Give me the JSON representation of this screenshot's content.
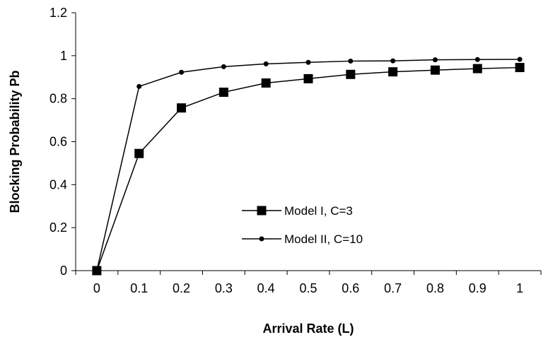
{
  "chart_data": {
    "type": "line",
    "title": "",
    "xlabel": "Arrival Rate (L)",
    "ylabel": "Blocking Probability Pb",
    "categories": [
      "0",
      "0.1",
      "0.2",
      "0.3",
      "0.4",
      "0.5",
      "0.6",
      "0.7",
      "0.8",
      "0.9",
      "1"
    ],
    "x": [
      0,
      0.1,
      0.2,
      0.3,
      0.4,
      0.5,
      0.6,
      0.7,
      0.8,
      0.9,
      1
    ],
    "ylim": [
      0,
      1.2
    ],
    "yticks": [
      "0",
      "0.2",
      "0.4",
      "0.6",
      "0.8",
      "1",
      "1.2"
    ],
    "grid": false,
    "legend_position": "center",
    "series": [
      {
        "name": "Model I, C=3",
        "marker": "square",
        "color": "#000000",
        "values": [
          0,
          0.545,
          0.757,
          0.83,
          0.873,
          0.893,
          0.913,
          0.925,
          0.933,
          0.94,
          0.945
        ]
      },
      {
        "name": "Model II, C=10",
        "marker": "circle",
        "color": "#000000",
        "values": [
          0,
          0.857,
          0.923,
          0.949,
          0.962,
          0.969,
          0.975,
          0.976,
          0.981,
          0.982,
          0.983
        ]
      }
    ]
  }
}
